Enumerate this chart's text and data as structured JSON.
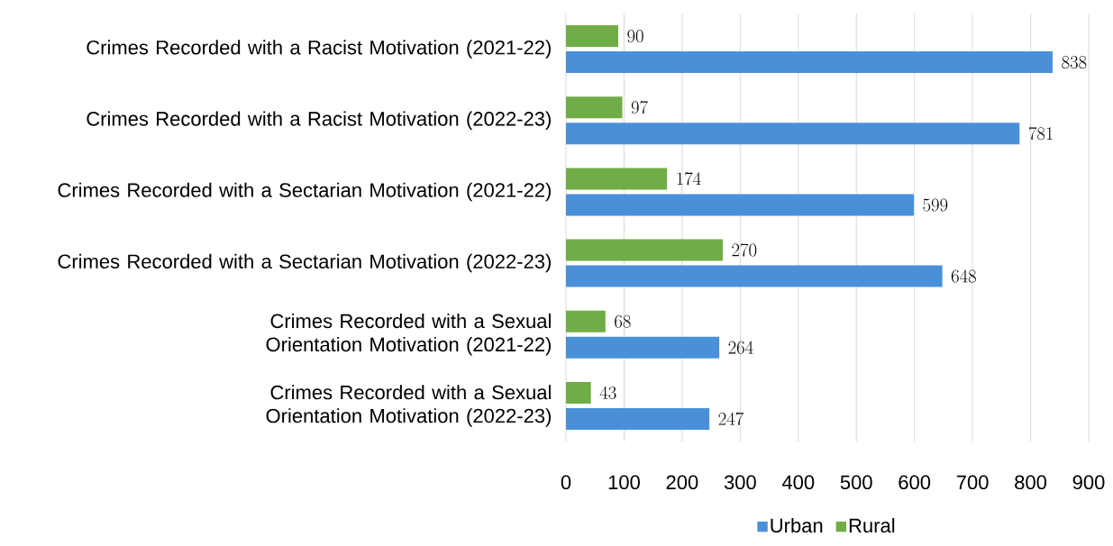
{
  "chart_data": {
    "type": "bar",
    "orientation": "horizontal",
    "categories": [
      "Crimes  Recorded with a Racist Motivation (2021-22)",
      "Crimes  Recorded with a Racist Motivation (2022-23)",
      "Crimes Recorded with a Sectarian Motivation (2021-22)",
      "Crimes Recorded with a Sectarian Motivation (2022-23)",
      "Crimes Recorded with a Sexual Orientation Motivation (2021-22)",
      "Crimes Recorded with a Sexual Orientation Motivation (2022-23)"
    ],
    "series": [
      {
        "name": "Urban",
        "color": "#4a90d9",
        "values": [
          838,
          781,
          599,
          648,
          264,
          247
        ]
      },
      {
        "name": "Rural",
        "color": "#70ad47",
        "values": [
          90,
          97,
          174,
          270,
          68,
          43
        ]
      }
    ],
    "xlim": [
      0,
      900
    ],
    "xticks": [
      0,
      100,
      200,
      300,
      400,
      500,
      600,
      700,
      800,
      900
    ],
    "grid": "x",
    "legend": "bottom",
    "data_labels": true
  }
}
